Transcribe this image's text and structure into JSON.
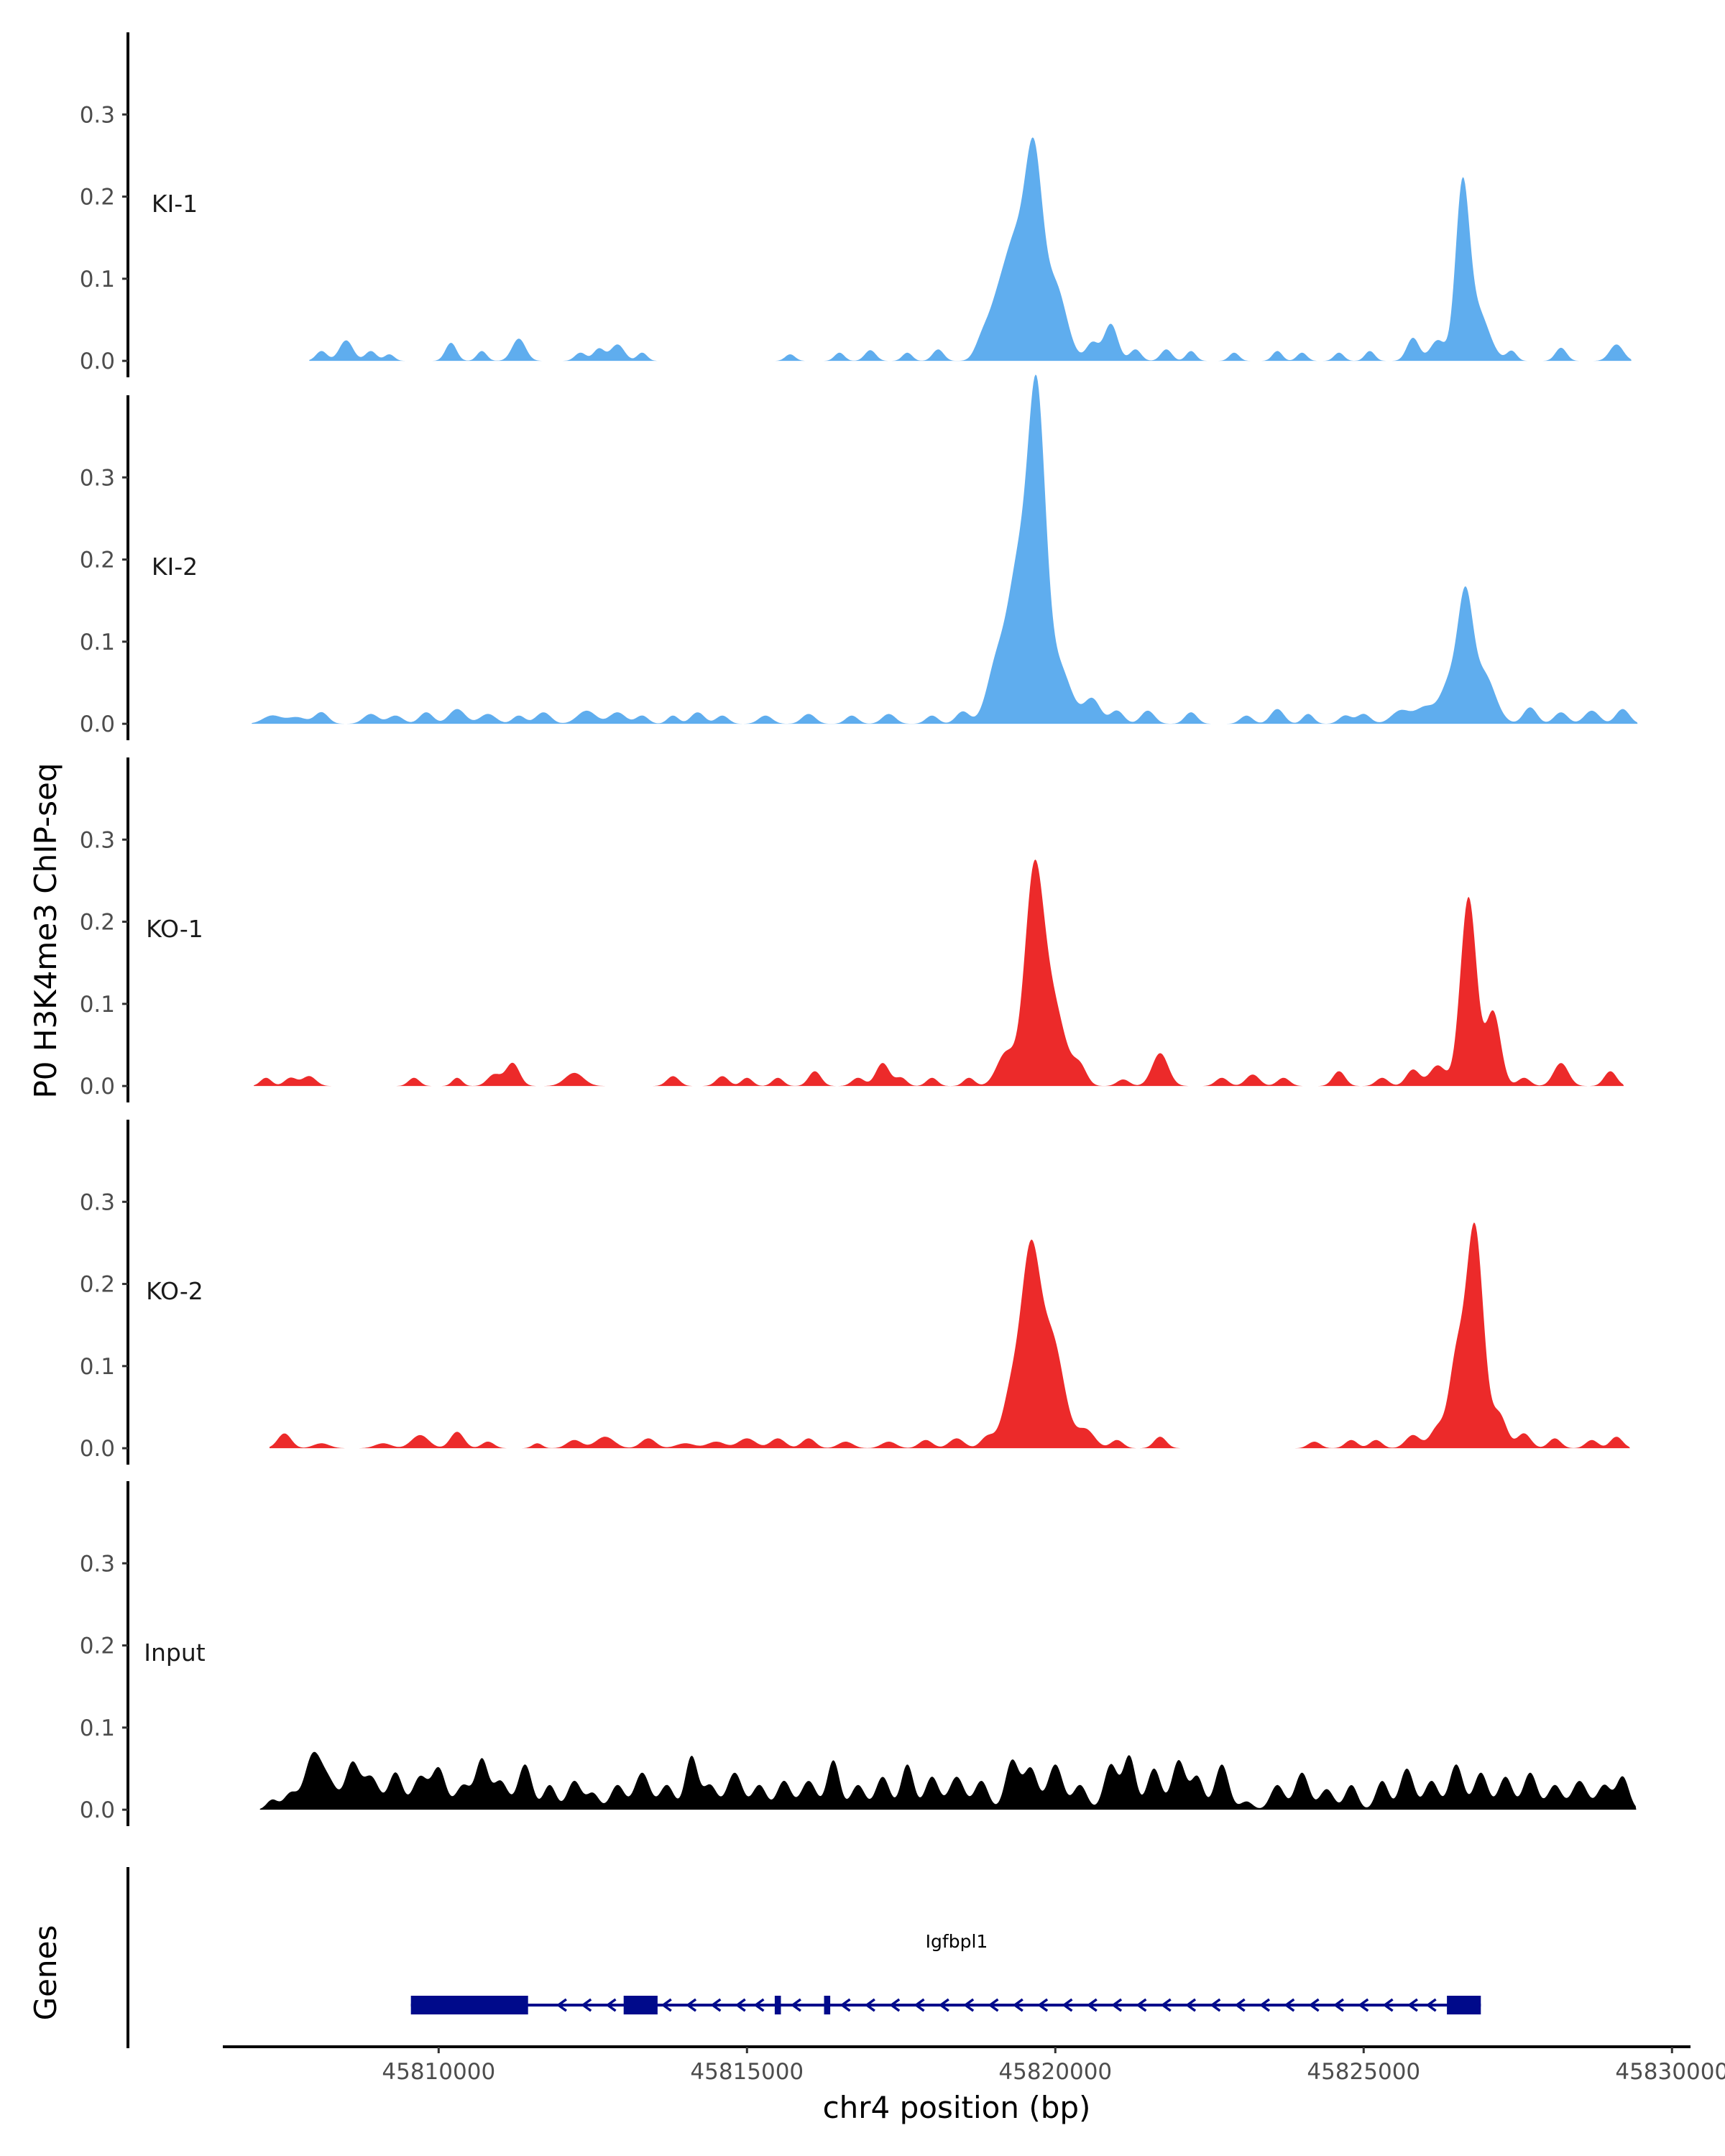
{
  "chart_data": {
    "type": "area",
    "ylabel": "P0 H3K4me3 ChIP-seq",
    "xlabel": "chr4 position (bp)",
    "xlim": [
      45806500,
      45830300
    ],
    "ylim": [
      -0.02,
      0.4
    ],
    "y_ticks": [
      0.0,
      0.1,
      0.2,
      0.3
    ],
    "y_tick_labels": [
      "0.0",
      "0.1",
      "0.2",
      "0.3"
    ],
    "x_ticks": [
      45810000,
      45815000,
      45820000,
      45825000,
      45830000
    ],
    "x_tick_labels": [
      "45810000",
      "45815000",
      "45820000",
      "45825000",
      "45830000"
    ],
    "colors": {
      "KI": "#5fadee",
      "KO": "#ec2a2a",
      "Input": "#000000",
      "gene": "#000a8b"
    },
    "tracks": [
      {
        "name": "KI-1",
        "color": "#5fadee",
        "peaks": [
          [
            45808100,
            0.012,
            90
          ],
          [
            45808500,
            0.025,
            110
          ],
          [
            45808900,
            0.012,
            90
          ],
          [
            45809200,
            0.008,
            80
          ],
          [
            45810200,
            0.022,
            90
          ],
          [
            45810700,
            0.012,
            80
          ],
          [
            45811300,
            0.027,
            110
          ],
          [
            45812300,
            0.01,
            90
          ],
          [
            45812600,
            0.015,
            90
          ],
          [
            45812900,
            0.02,
            110
          ],
          [
            45813300,
            0.01,
            80
          ],
          [
            45815700,
            0.008,
            80
          ],
          [
            45816500,
            0.01,
            80
          ],
          [
            45817000,
            0.013,
            90
          ],
          [
            45817600,
            0.01,
            80
          ],
          [
            45818100,
            0.014,
            90
          ],
          [
            45818800,
            0.018,
            110
          ],
          [
            45819050,
            0.06,
            160
          ],
          [
            45819350,
            0.13,
            170
          ],
          [
            45819650,
            0.23,
            140
          ],
          [
            45820000,
            0.09,
            180
          ],
          [
            45820600,
            0.022,
            100
          ],
          [
            45820900,
            0.045,
            110
          ],
          [
            45821300,
            0.014,
            90
          ],
          [
            45821800,
            0.014,
            90
          ],
          [
            45822200,
            0.012,
            80
          ],
          [
            45822900,
            0.01,
            80
          ],
          [
            45823600,
            0.012,
            80
          ],
          [
            45824000,
            0.01,
            80
          ],
          [
            45824600,
            0.01,
            80
          ],
          [
            45825100,
            0.012,
            80
          ],
          [
            45825800,
            0.028,
            100
          ],
          [
            45826200,
            0.025,
            120
          ],
          [
            45826600,
            0.2,
            110
          ],
          [
            45826850,
            0.06,
            180
          ],
          [
            45827400,
            0.012,
            80
          ],
          [
            45828200,
            0.016,
            90
          ],
          [
            45829100,
            0.02,
            110
          ]
        ]
      },
      {
        "name": "KI-2",
        "color": "#5fadee",
        "peaks": [
          [
            45807300,
            0.01,
            150
          ],
          [
            45807700,
            0.008,
            150
          ],
          [
            45808100,
            0.014,
            110
          ],
          [
            45808900,
            0.012,
            120
          ],
          [
            45809300,
            0.01,
            120
          ],
          [
            45809800,
            0.014,
            110
          ],
          [
            45810300,
            0.018,
            130
          ],
          [
            45810800,
            0.012,
            130
          ],
          [
            45811300,
            0.01,
            100
          ],
          [
            45811700,
            0.014,
            120
          ],
          [
            45812400,
            0.016,
            150
          ],
          [
            45812900,
            0.014,
            130
          ],
          [
            45813300,
            0.01,
            100
          ],
          [
            45813800,
            0.01,
            90
          ],
          [
            45814200,
            0.014,
            110
          ],
          [
            45814600,
            0.01,
            100
          ],
          [
            45815300,
            0.01,
            110
          ],
          [
            45816000,
            0.012,
            110
          ],
          [
            45816700,
            0.01,
            100
          ],
          [
            45817300,
            0.012,
            110
          ],
          [
            45818000,
            0.01,
            100
          ],
          [
            45818500,
            0.015,
            110
          ],
          [
            45819050,
            0.07,
            160
          ],
          [
            45819400,
            0.18,
            170
          ],
          [
            45819700,
            0.37,
            140
          ],
          [
            45820050,
            0.07,
            200
          ],
          [
            45820600,
            0.03,
            130
          ],
          [
            45821000,
            0.016,
            110
          ],
          [
            45821500,
            0.016,
            110
          ],
          [
            45822200,
            0.014,
            100
          ],
          [
            45823100,
            0.01,
            100
          ],
          [
            45823600,
            0.018,
            110
          ],
          [
            45824100,
            0.012,
            90
          ],
          [
            45824700,
            0.01,
            100
          ],
          [
            45825000,
            0.012,
            110
          ],
          [
            45825600,
            0.016,
            150
          ],
          [
            45826000,
            0.02,
            160
          ],
          [
            45826400,
            0.05,
            150
          ],
          [
            45826650,
            0.14,
            120
          ],
          [
            45826950,
            0.06,
            180
          ],
          [
            45827700,
            0.02,
            110
          ],
          [
            45828200,
            0.014,
            110
          ],
          [
            45828700,
            0.016,
            120
          ],
          [
            45829200,
            0.018,
            110
          ]
        ]
      },
      {
        "name": "KO-1",
        "color": "#ec2a2a",
        "peaks": [
          [
            45807200,
            0.01,
            90
          ],
          [
            45807600,
            0.01,
            100
          ],
          [
            45807900,
            0.012,
            110
          ],
          [
            45809600,
            0.01,
            90
          ],
          [
            45810300,
            0.01,
            80
          ],
          [
            45810900,
            0.014,
            110
          ],
          [
            45811200,
            0.028,
            110
          ],
          [
            45812200,
            0.016,
            150
          ],
          [
            45813800,
            0.012,
            100
          ],
          [
            45814600,
            0.012,
            100
          ],
          [
            45815000,
            0.01,
            90
          ],
          [
            45815500,
            0.01,
            90
          ],
          [
            45816100,
            0.018,
            100
          ],
          [
            45816800,
            0.01,
            100
          ],
          [
            45817200,
            0.028,
            110
          ],
          [
            45817500,
            0.01,
            90
          ],
          [
            45818000,
            0.01,
            90
          ],
          [
            45818600,
            0.01,
            90
          ],
          [
            45819200,
            0.04,
            150
          ],
          [
            45819650,
            0.24,
            150
          ],
          [
            45819950,
            0.1,
            200
          ],
          [
            45820400,
            0.022,
            110
          ],
          [
            45821100,
            0.008,
            100
          ],
          [
            45821700,
            0.04,
            130
          ],
          [
            45822700,
            0.01,
            100
          ],
          [
            45823200,
            0.014,
            110
          ],
          [
            45823700,
            0.01,
            100
          ],
          [
            45824600,
            0.018,
            100
          ],
          [
            45825300,
            0.01,
            100
          ],
          [
            45825800,
            0.02,
            110
          ],
          [
            45826200,
            0.025,
            130
          ],
          [
            45826700,
            0.23,
            130
          ],
          [
            45827100,
            0.09,
            120
          ],
          [
            45827600,
            0.01,
            100
          ],
          [
            45828200,
            0.028,
            120
          ],
          [
            45829000,
            0.018,
            100
          ]
        ]
      },
      {
        "name": "KO-2",
        "color": "#ec2a2a",
        "peaks": [
          [
            45807500,
            0.018,
            110
          ],
          [
            45808100,
            0.006,
            130
          ],
          [
            45809100,
            0.006,
            130
          ],
          [
            45809700,
            0.016,
            140
          ],
          [
            45810300,
            0.02,
            110
          ],
          [
            45810800,
            0.008,
            100
          ],
          [
            45811600,
            0.006,
            80
          ],
          [
            45812200,
            0.01,
            120
          ],
          [
            45812700,
            0.014,
            150
          ],
          [
            45813400,
            0.012,
            120
          ],
          [
            45814000,
            0.006,
            150
          ],
          [
            45814500,
            0.008,
            140
          ],
          [
            45815000,
            0.012,
            140
          ],
          [
            45815500,
            0.012,
            120
          ],
          [
            45816000,
            0.012,
            110
          ],
          [
            45816600,
            0.008,
            120
          ],
          [
            45817300,
            0.008,
            120
          ],
          [
            45817900,
            0.01,
            110
          ],
          [
            45818400,
            0.012,
            120
          ],
          [
            45818900,
            0.014,
            110
          ],
          [
            45819300,
            0.07,
            150
          ],
          [
            45819600,
            0.22,
            150
          ],
          [
            45819950,
            0.13,
            190
          ],
          [
            45820500,
            0.022,
            140
          ],
          [
            45821000,
            0.01,
            100
          ],
          [
            45821700,
            0.014,
            100
          ],
          [
            45824200,
            0.008,
            100
          ],
          [
            45824800,
            0.01,
            100
          ],
          [
            45825200,
            0.01,
            100
          ],
          [
            45825800,
            0.016,
            120
          ],
          [
            45826200,
            0.025,
            120
          ],
          [
            45826500,
            0.1,
            120
          ],
          [
            45826800,
            0.27,
            140
          ],
          [
            45827200,
            0.04,
            120
          ],
          [
            45827600,
            0.018,
            110
          ],
          [
            45828100,
            0.012,
            100
          ],
          [
            45828700,
            0.01,
            100
          ],
          [
            45829100,
            0.014,
            100
          ]
        ]
      },
      {
        "name": "Input",
        "color": "#000000",
        "peaks": [
          [
            45807300,
            0.012,
            90
          ],
          [
            45807600,
            0.02,
            110
          ],
          [
            45807950,
            0.06,
            130
          ],
          [
            45808200,
            0.035,
            150
          ],
          [
            45808600,
            0.055,
            110
          ],
          [
            45808900,
            0.04,
            130
          ],
          [
            45809300,
            0.045,
            110
          ],
          [
            45809700,
            0.04,
            120
          ],
          [
            45810000,
            0.05,
            110
          ],
          [
            45810400,
            0.03,
            120
          ],
          [
            45810700,
            0.06,
            100
          ],
          [
            45811000,
            0.035,
            120
          ],
          [
            45811400,
            0.055,
            110
          ],
          [
            45811800,
            0.03,
            100
          ],
          [
            45812200,
            0.035,
            110
          ],
          [
            45812500,
            0.02,
            100
          ],
          [
            45812900,
            0.03,
            110
          ],
          [
            45813300,
            0.045,
            120
          ],
          [
            45813700,
            0.03,
            110
          ],
          [
            45814100,
            0.065,
            100
          ],
          [
            45814400,
            0.03,
            110
          ],
          [
            45814800,
            0.045,
            120
          ],
          [
            45815200,
            0.03,
            110
          ],
          [
            45815600,
            0.035,
            110
          ],
          [
            45816000,
            0.035,
            120
          ],
          [
            45816400,
            0.06,
            100
          ],
          [
            45816800,
            0.03,
            110
          ],
          [
            45817200,
            0.04,
            110
          ],
          [
            45817600,
            0.055,
            100
          ],
          [
            45818000,
            0.04,
            110
          ],
          [
            45818400,
            0.04,
            120
          ],
          [
            45818800,
            0.035,
            110
          ],
          [
            45819300,
            0.06,
            110
          ],
          [
            45819600,
            0.05,
            110
          ],
          [
            45820000,
            0.055,
            120
          ],
          [
            45820400,
            0.03,
            110
          ],
          [
            45820900,
            0.055,
            110
          ],
          [
            45821200,
            0.065,
            100
          ],
          [
            45821600,
            0.05,
            110
          ],
          [
            45822000,
            0.06,
            110
          ],
          [
            45822300,
            0.04,
            100
          ],
          [
            45822700,
            0.055,
            110
          ],
          [
            45823100,
            0.01,
            100
          ],
          [
            45823600,
            0.03,
            110
          ],
          [
            45824000,
            0.045,
            110
          ],
          [
            45824400,
            0.025,
            110
          ],
          [
            45824800,
            0.03,
            100
          ],
          [
            45825300,
            0.035,
            100
          ],
          [
            45825700,
            0.05,
            110
          ],
          [
            45826100,
            0.035,
            110
          ],
          [
            45826500,
            0.055,
            110
          ],
          [
            45826900,
            0.045,
            110
          ],
          [
            45827300,
            0.04,
            110
          ],
          [
            45827700,
            0.045,
            110
          ],
          [
            45828100,
            0.03,
            110
          ],
          [
            45828500,
            0.035,
            120
          ],
          [
            45828900,
            0.03,
            110
          ],
          [
            45829200,
            0.04,
            100
          ]
        ]
      }
    ],
    "genes_label": "Genes",
    "gene": {
      "name": "Igfbpl1",
      "start": 45809550,
      "end": 45826900,
      "strand": "-",
      "exons": [
        [
          45809550,
          45811450
        ],
        [
          45813000,
          45813550
        ],
        [
          45815450,
          45815550
        ],
        [
          45816250,
          45816350
        ],
        [
          45826350,
          45826900
        ]
      ],
      "arrow_positions": [
        45812000,
        45812400,
        45812800,
        45813700,
        45814100,
        45814500,
        45814900,
        45815200,
        45815800,
        45816600,
        45817000,
        45817400,
        45817800,
        45818200,
        45818600,
        45819000,
        45819400,
        45819800,
        45820200,
        45820600,
        45821000,
        45821400,
        45821800,
        45822200,
        45822600,
        45823000,
        45823400,
        45823800,
        45824200,
        45824600,
        45825000,
        45825400,
        45825800,
        45826100
      ]
    }
  }
}
